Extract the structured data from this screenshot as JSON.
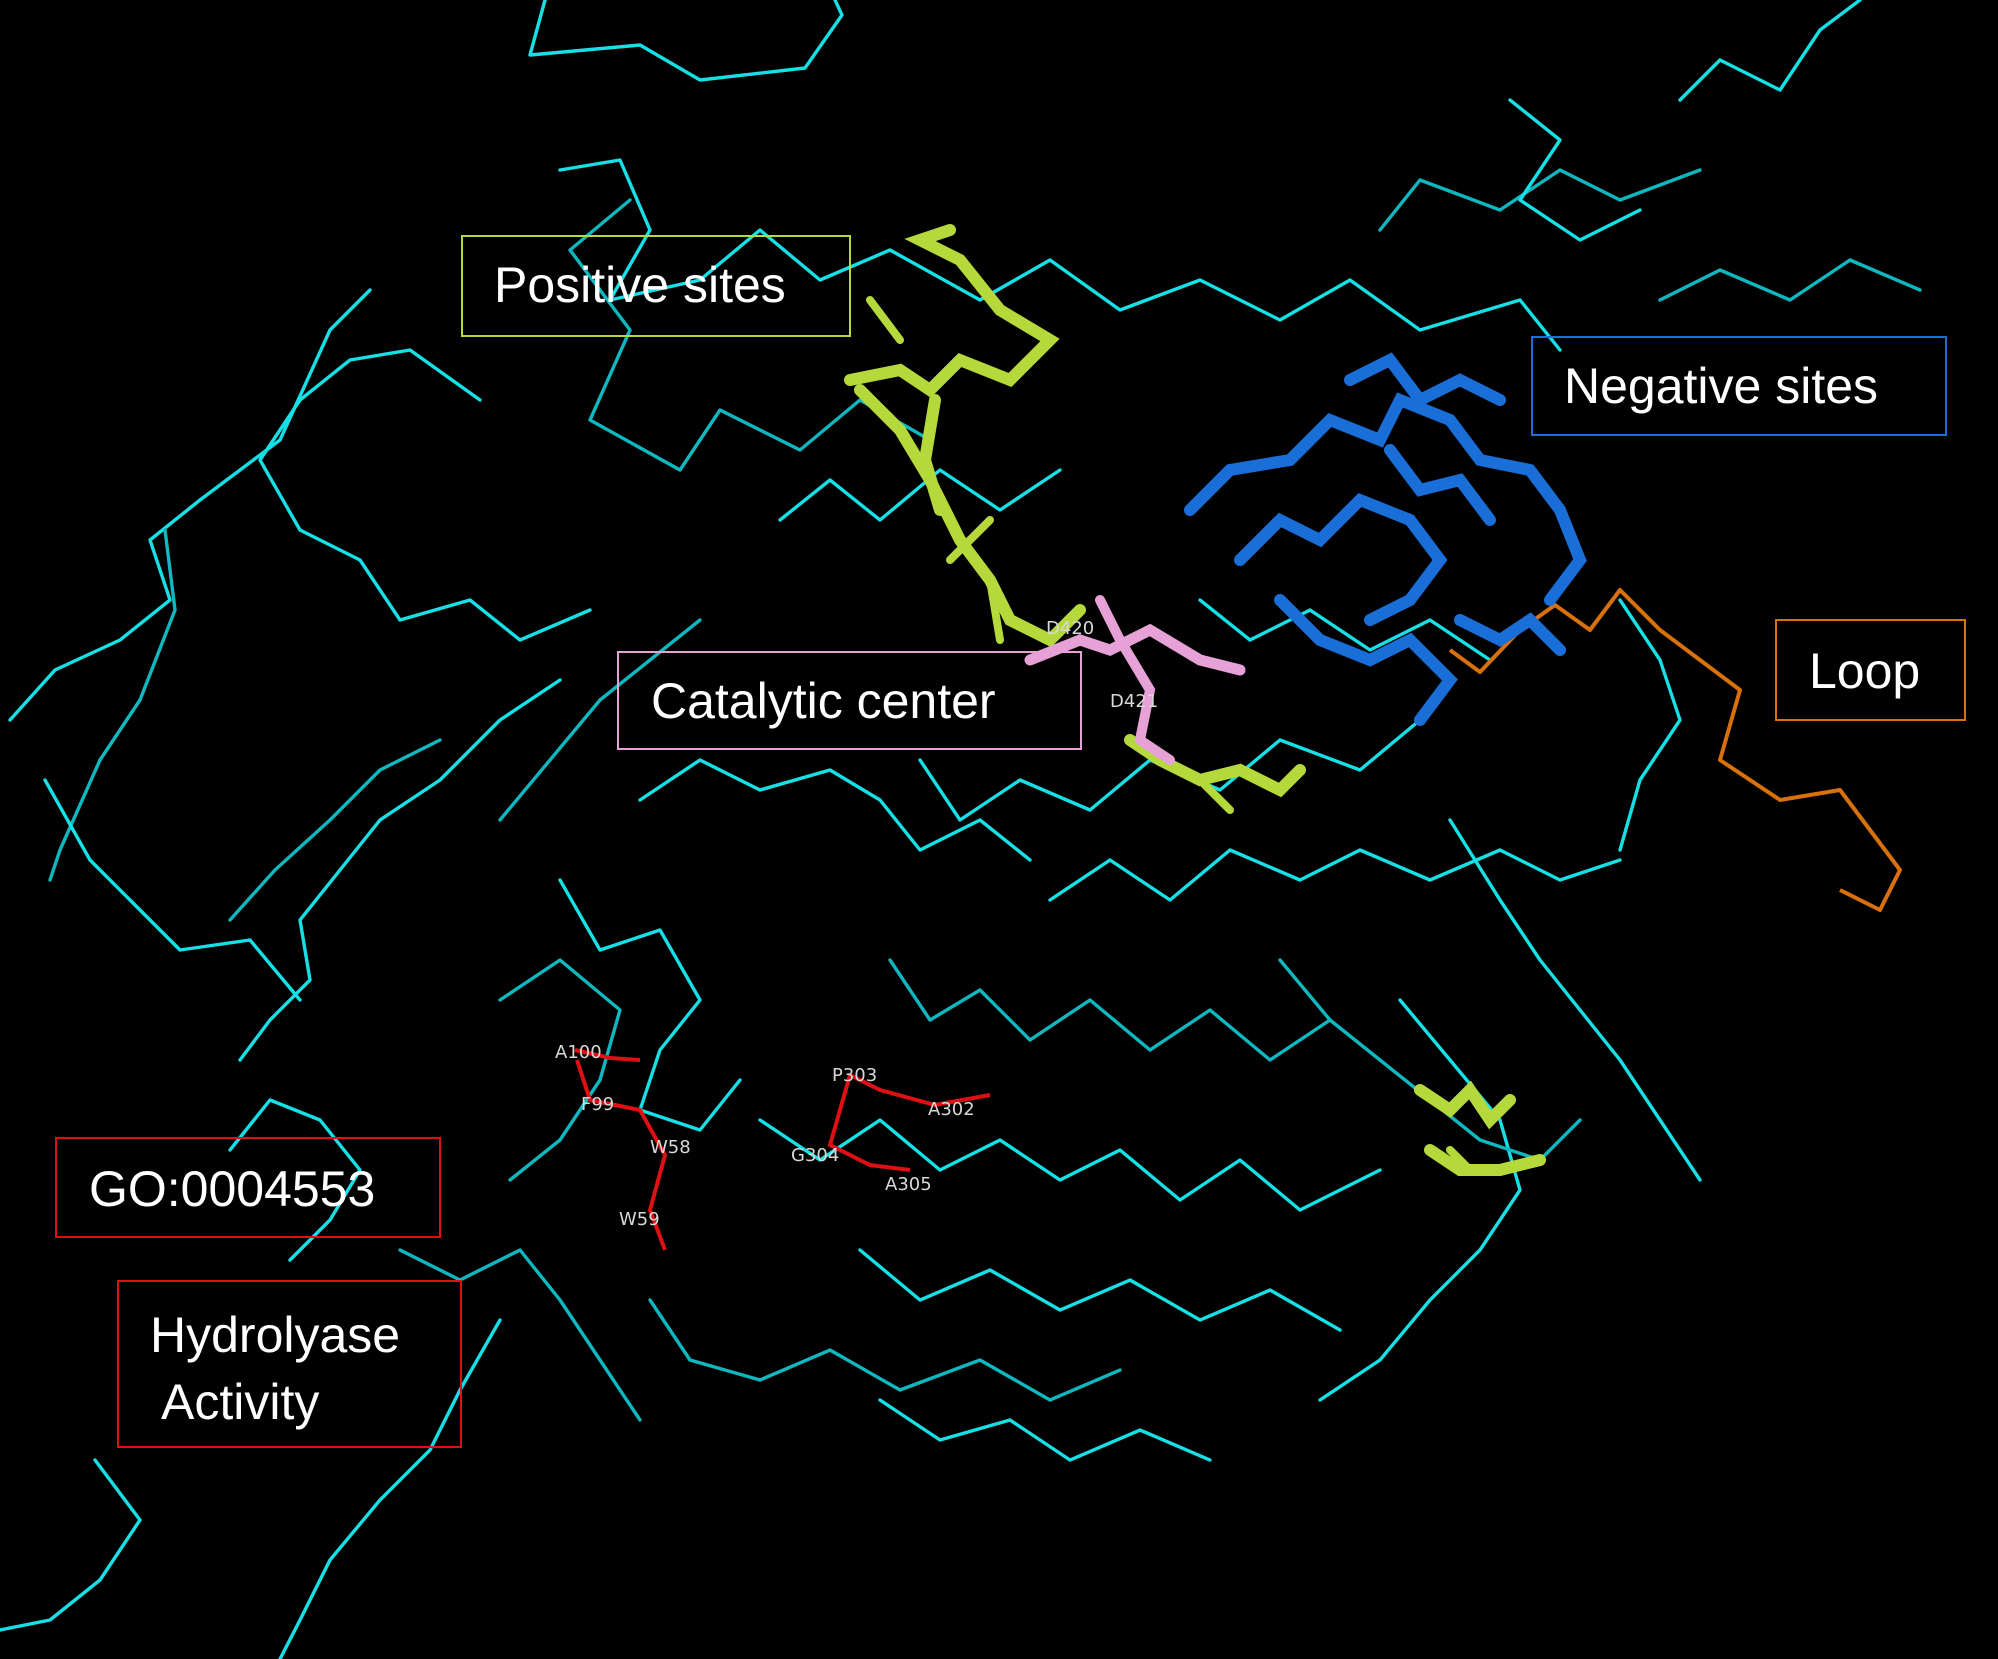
{
  "labels": {
    "positive": "Positive sites",
    "negative": "Negative sites",
    "catalytic": "Catalytic center",
    "loop": "Loop",
    "go": "GO:0004553",
    "hydro_line1": "Hydrolyase",
    "hydro_line2": "Activity"
  },
  "residues": {
    "d420": "D420",
    "d421": "D421",
    "a100": "A100",
    "f99": "F99",
    "w58": "W58",
    "w59": "W59",
    "p303": "P303",
    "a302": "A302",
    "g304": "G304",
    "a305": "A305"
  },
  "colors": {
    "backbone": "#16e0e6",
    "backbone_dark": "#0fb7bf",
    "positive": "#b5d83a",
    "negative": "#1a6ed8",
    "catalytic": "#e6a2d6",
    "loop": "#d8700c",
    "go": "#e00f14",
    "background": "#000000"
  }
}
